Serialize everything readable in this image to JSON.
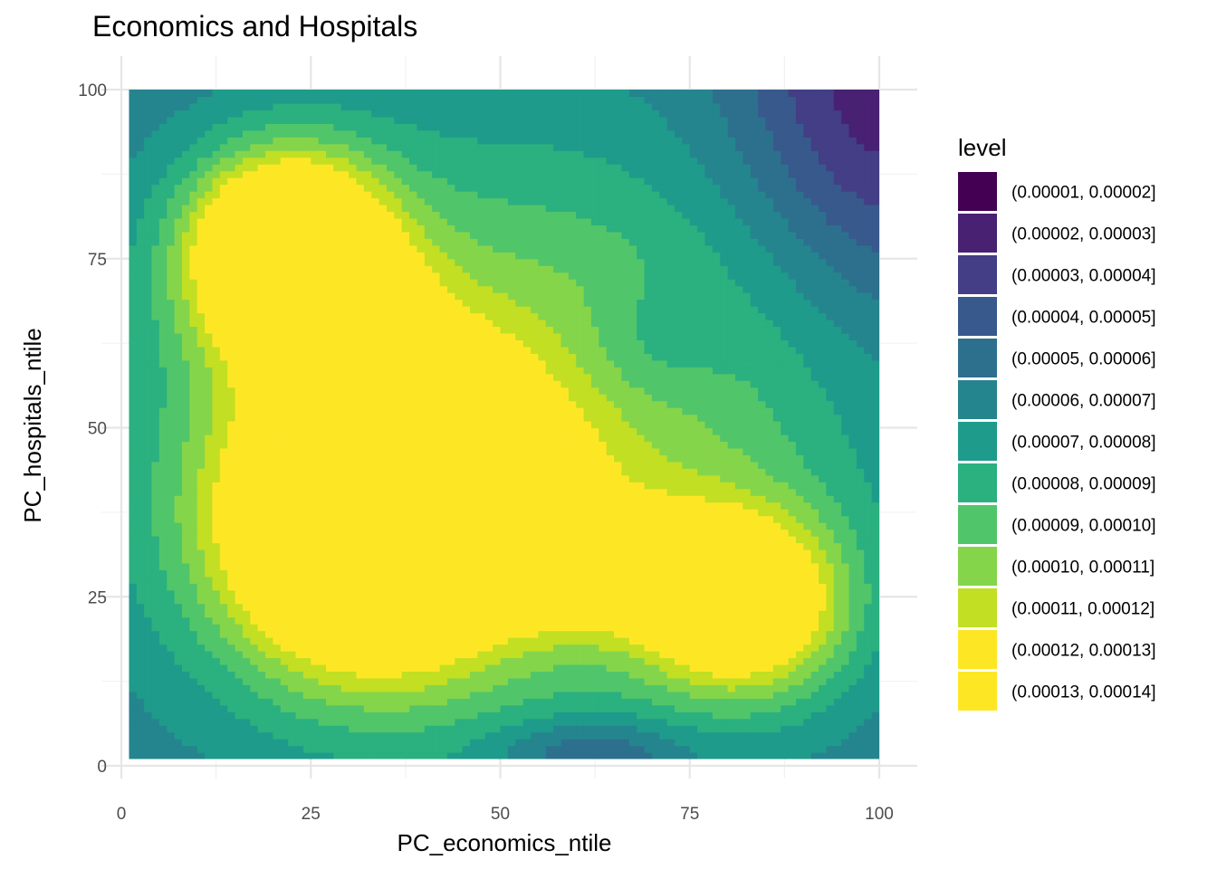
{
  "chart_data": {
    "type": "contour",
    "title": "Economics and Hospitals",
    "xlabel": "PC_economics_ntile",
    "ylabel": "PC_hospitals_ntile",
    "xlim": [
      0,
      100
    ],
    "ylim": [
      0,
      100
    ],
    "x_ticks": [
      0,
      25,
      50,
      75,
      100
    ],
    "y_ticks": [
      0,
      25,
      50,
      75,
      100
    ],
    "grid": true,
    "data_extent": {
      "x": [
        1,
        100
      ],
      "y": [
        1,
        100
      ]
    },
    "density_peaks": [
      {
        "x": 22,
        "y": 75,
        "level": 0.000135
      },
      {
        "x": 32,
        "y": 36,
        "level": 0.000135
      },
      {
        "x": 83,
        "y": 23,
        "level": 0.000125
      }
    ],
    "legend": {
      "title": "level",
      "position": "right",
      "entries": [
        {
          "label": "(0.00001, 0.00002]",
          "color": "#440154"
        },
        {
          "label": "(0.00002, 0.00003]",
          "color": "#482173"
        },
        {
          "label": "(0.00003, 0.00004]",
          "color": "#433E85"
        },
        {
          "label": "(0.00004, 0.00005]",
          "color": "#38598C"
        },
        {
          "label": "(0.00005, 0.00006]",
          "color": "#2D708E"
        },
        {
          "label": "(0.00006, 0.00007]",
          "color": "#25858E"
        },
        {
          "label": "(0.00007, 0.00008]",
          "color": "#1E9B8A"
        },
        {
          "label": "(0.00008, 0.00009]",
          "color": "#2BB07F"
        },
        {
          "label": "(0.00009, 0.00010]",
          "color": "#51C56A"
        },
        {
          "label": "(0.00010, 0.00011]",
          "color": "#85D54A"
        },
        {
          "label": "(0.00011, 0.00012]",
          "color": "#C2DF23"
        },
        {
          "label": "(0.00012, 0.00013]",
          "color": "#FDE725"
        },
        {
          "label": "(0.00013, 0.00014]",
          "color": "#FDE725"
        }
      ]
    }
  }
}
